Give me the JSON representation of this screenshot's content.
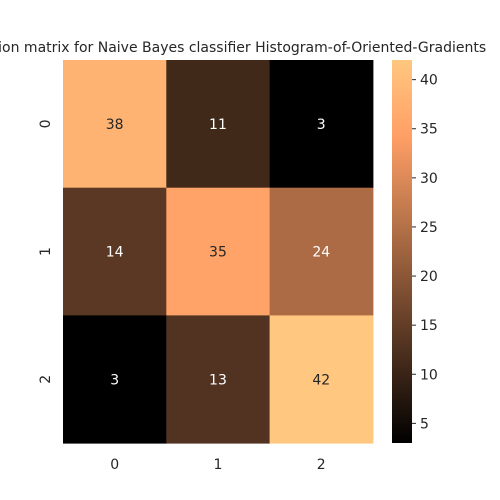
{
  "chart_data": {
    "type": "heatmap",
    "title": "Confusion matrix for Naive Bayes classifier     Histogram-of-Oriented-Gradients",
    "x_categories": [
      "0",
      "1",
      "2"
    ],
    "y_categories": [
      "0",
      "1",
      "2"
    ],
    "values": [
      [
        38,
        11,
        3
      ],
      [
        14,
        35,
        24
      ],
      [
        3,
        13,
        42
      ]
    ],
    "color_range": [
      3,
      42
    ],
    "colormap": "copper",
    "colorbar_ticks": [
      5,
      10,
      15,
      20,
      25,
      30,
      35,
      40
    ],
    "xlabel": "",
    "ylabel": "",
    "grid": false,
    "colorbar_position": "right"
  }
}
